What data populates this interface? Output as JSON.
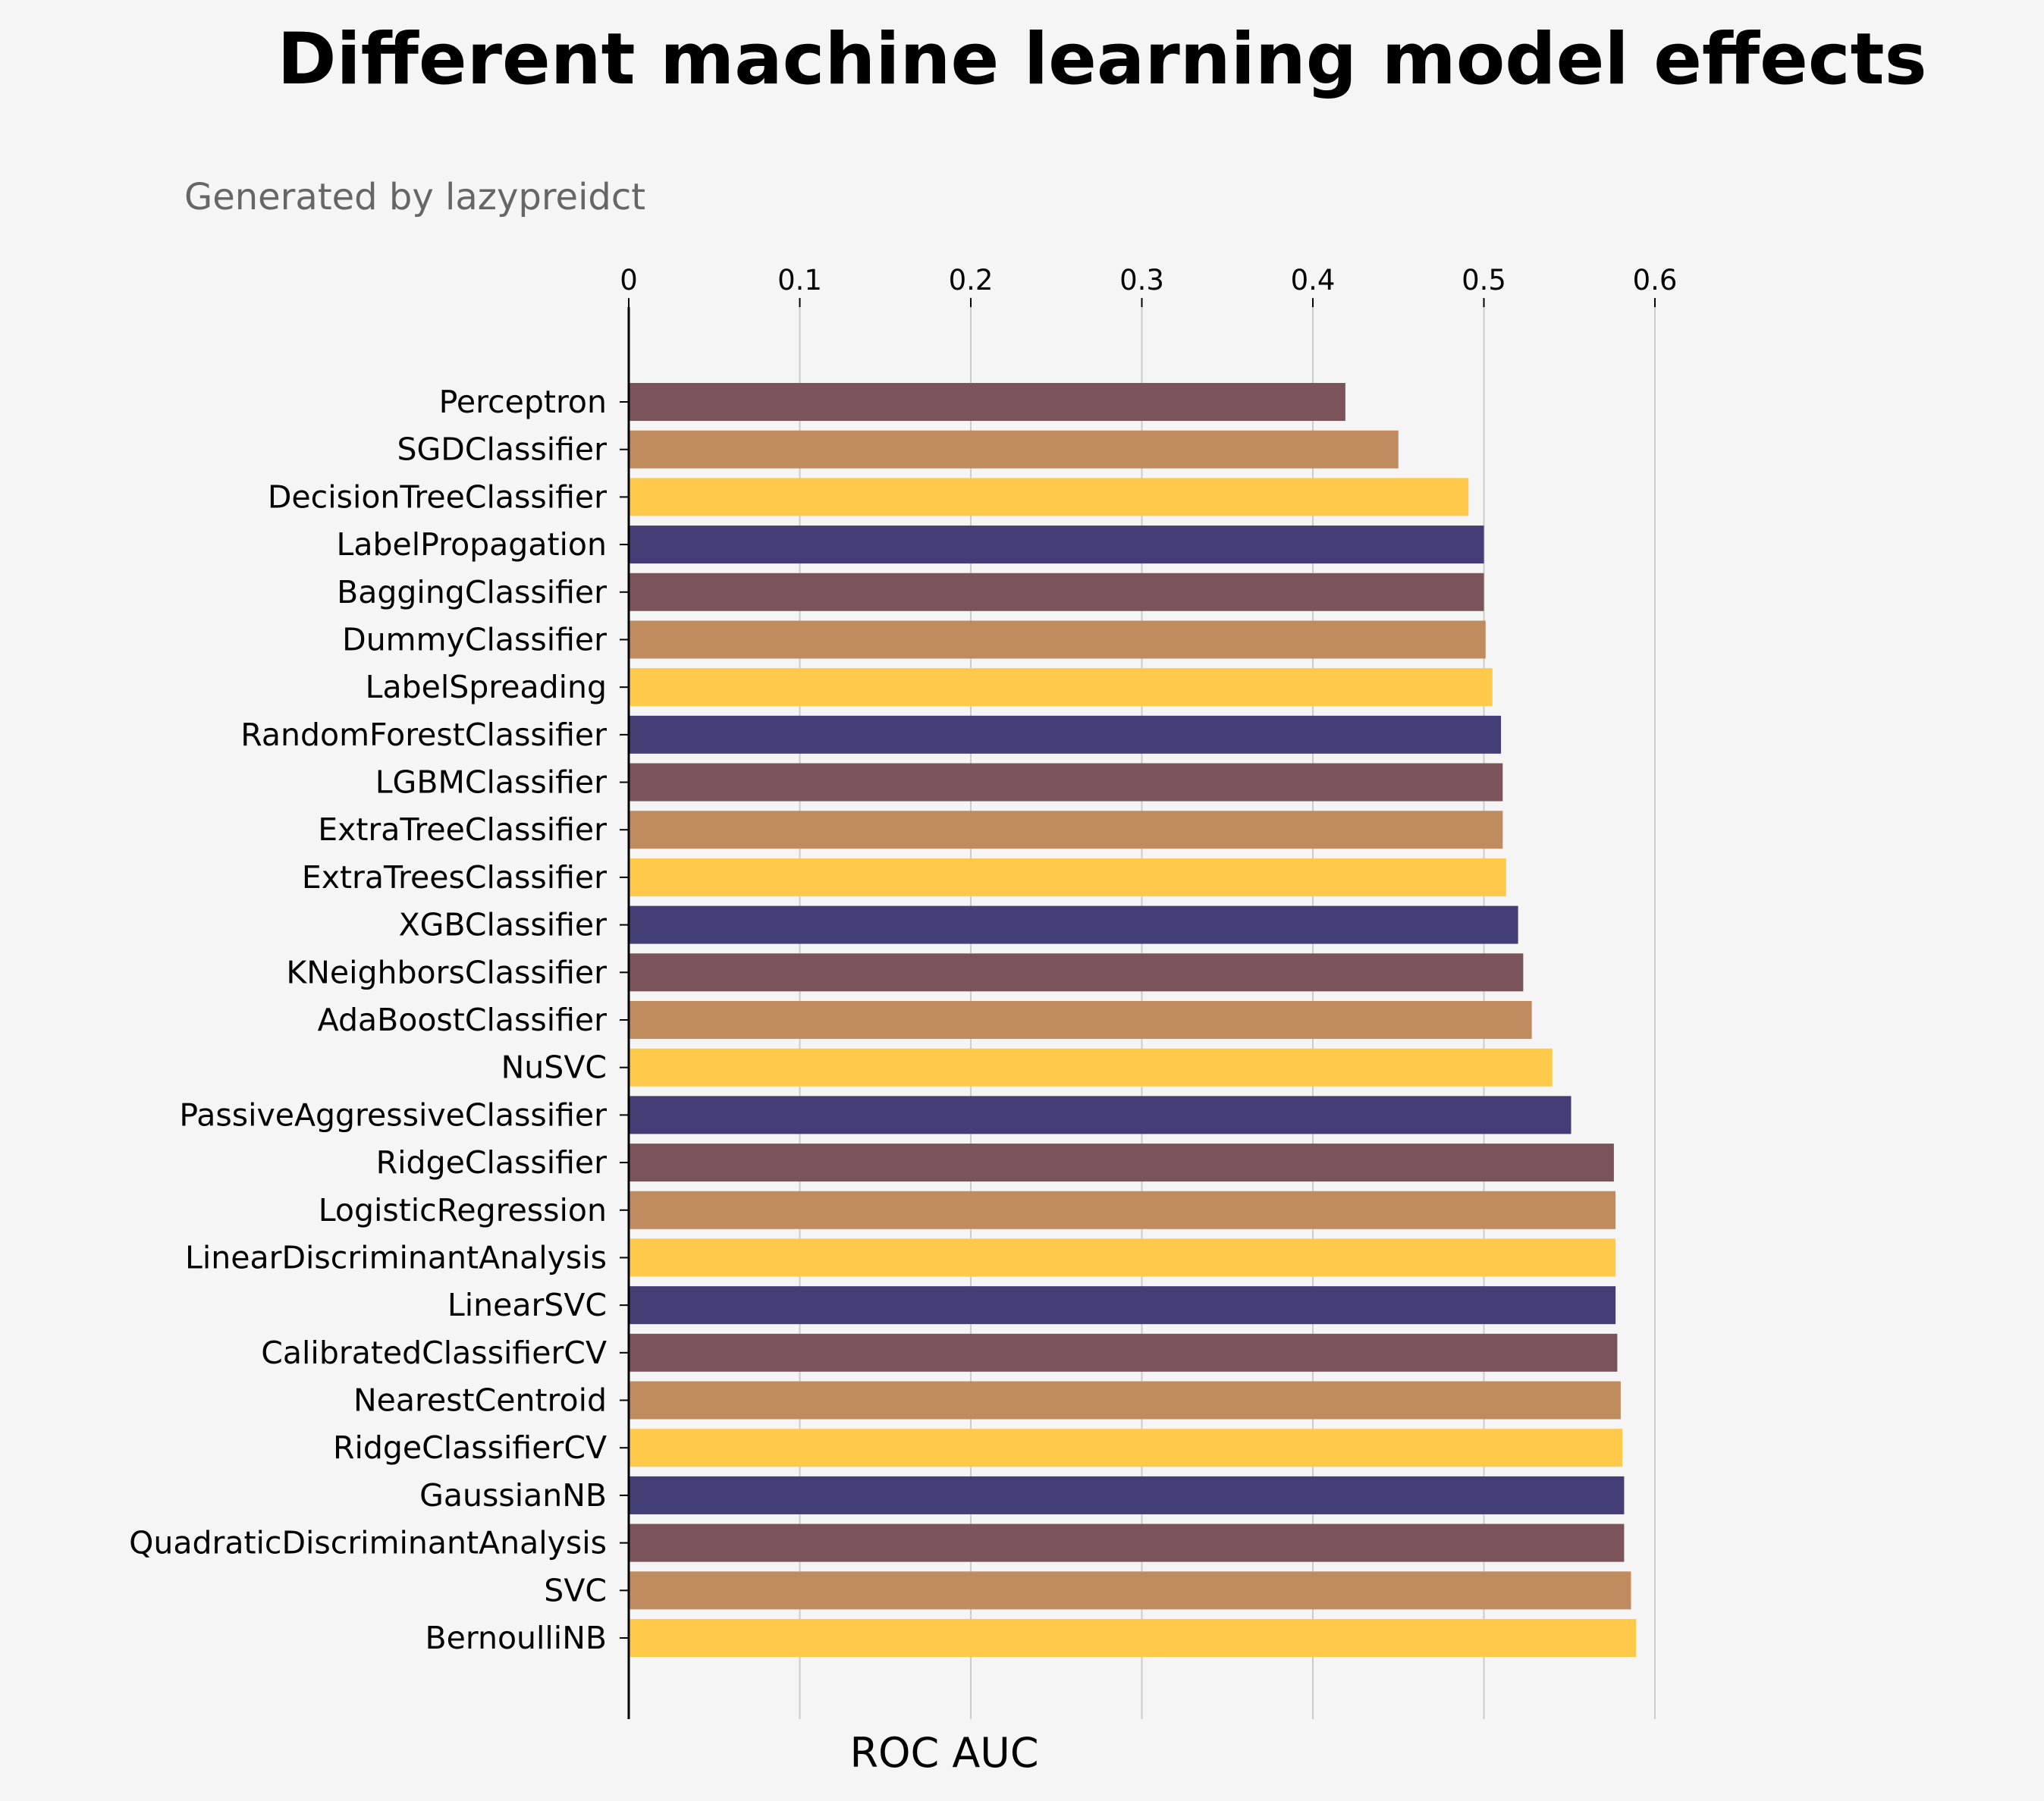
{
  "chart_data": {
    "type": "bar",
    "orientation": "horizontal",
    "title": "Different machine learning model effects",
    "subtitle": "Generated by lazypreidct",
    "xlabel": "ROC AUC",
    "ylabel": "",
    "xlim": [
      0,
      0.6
    ],
    "xticks": [
      "0",
      "0.1",
      "0.2",
      "0.3",
      "0.4",
      "0.5",
      "0.6"
    ],
    "x_axis_position": "top",
    "grid": "vertical",
    "legend": "none",
    "colors": [
      "#7a545a",
      "#c08b5e",
      "#ffc94a",
      "#433e75"
    ],
    "categories": [
      "Perceptron",
      "SGDClassifier",
      "DecisionTreeClassifier",
      "LabelPropagation",
      "BaggingClassifier",
      "DummyClassifier",
      "LabelSpreading",
      "RandomForestClassifier",
      "LGBMClassifier",
      "ExtraTreeClassifier",
      "ExtraTreesClassifier",
      "XGBClassifier",
      "KNeighborsClassifier",
      "AdaBoostClassifier",
      "NuSVC",
      "PassiveAggressiveClassifier",
      "RidgeClassifier",
      "LogisticRegression",
      "LinearDiscriminantAnalysis",
      "LinearSVC",
      "CalibratedClassifierCV",
      "NearestCentroid",
      "RidgeClassifierCV",
      "GaussianNB",
      "QuadraticDiscriminantAnalysis",
      "SVC",
      "BernoulliNB"
    ],
    "values": [
      0.419,
      0.45,
      0.491,
      0.5,
      0.5,
      0.501,
      0.505,
      0.51,
      0.511,
      0.511,
      0.513,
      0.52,
      0.523,
      0.528,
      0.54,
      0.551,
      0.576,
      0.577,
      0.577,
      0.577,
      0.578,
      0.58,
      0.581,
      0.582,
      0.582,
      0.586,
      0.589
    ]
  }
}
